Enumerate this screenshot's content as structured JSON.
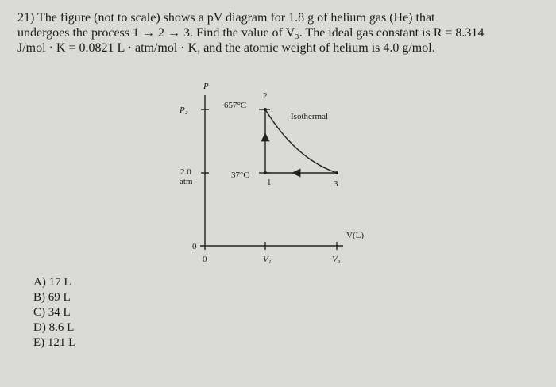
{
  "question": {
    "lines": [
      "21) The figure (not to scale) shows a pV diagram for 1.8 g of helium gas (He) that",
      "undergoes the process 1 → 2 → 3. Find the value of V₃. The ideal gas constant is R = 8.314",
      "J/mol · K = 0.0821 L · atm/mol · K, and the atomic weight of helium is 4.0 g/mol."
    ]
  },
  "diagram": {
    "y_axis_label": "P",
    "x_axis_label": "V(L)",
    "p2_label": "P₂",
    "p1_value": "2.0",
    "p1_unit": "atm",
    "origin_y": "0",
    "origin_x": "0",
    "v1_label": "V₁",
    "v3_label": "V₃",
    "t2_label": "657°C",
    "t1_label": "37°C",
    "curve_label": "Isothermal",
    "point_labels": [
      "1",
      "2",
      "3"
    ]
  },
  "choices": [
    "A) 17 L",
    "B) 69 L",
    "C) 34 L",
    "D) 8.6 L",
    "E) 121 L"
  ]
}
